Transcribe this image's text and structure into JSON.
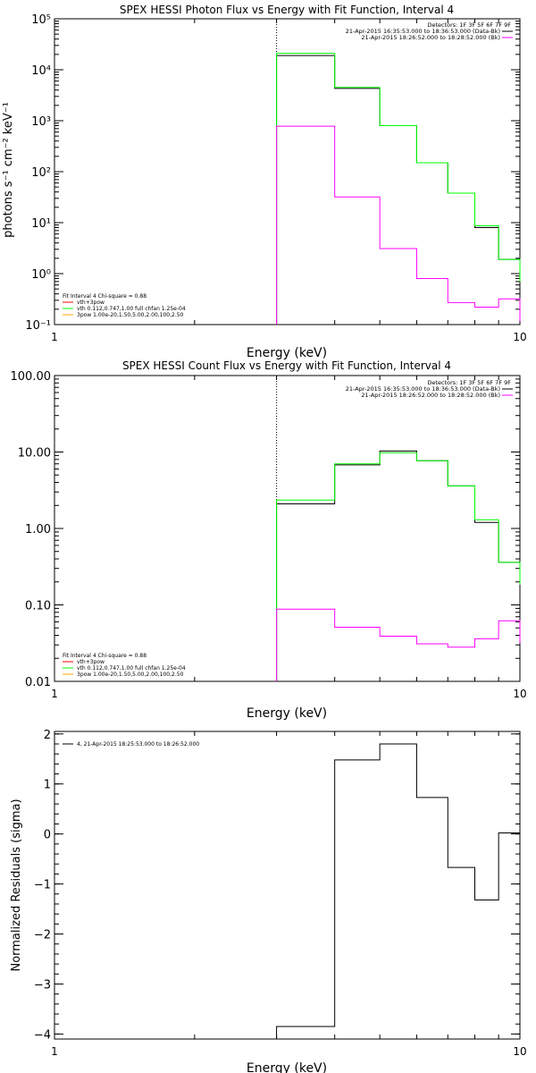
{
  "chart_data": [
    {
      "type": "line",
      "title": "SPEX HESSI Photon Flux vs Energy with Fit Function, Interval 4",
      "xlabel": "Energy (keV)",
      "ylabel": "photons s⁻¹ cm⁻² keV⁻¹",
      "x_scale": "log",
      "y_scale": "log",
      "xlim": [
        1,
        10
      ],
      "ylim": [
        0.1,
        100000
      ],
      "x_ticks": [
        {
          "v": 1,
          "label": "1"
        },
        {
          "v": 10,
          "label": "10"
        }
      ],
      "y_ticks": [
        {
          "v": 0.1,
          "label": "10⁻¹"
        },
        {
          "v": 1,
          "label": "10⁰"
        },
        {
          "v": 10,
          "label": "10¹"
        },
        {
          "v": 100,
          "label": "10²"
        },
        {
          "v": 1000,
          "label": "10³"
        },
        {
          "v": 10000,
          "label": "10⁴"
        },
        {
          "v": 100000,
          "label": "10⁵"
        }
      ],
      "vline": 3,
      "header": [
        "Detectors: 1F 3F 5F 6F 7F 9F",
        "21-Apr-2015 16:35:53.000 to 18:36:53.000 (Data-Bk)",
        "21-Apr-2015 18:26:52.000 to 18:28:52.000 (Bk)"
      ],
      "header_colors": [
        "#000000",
        "#ff00ff"
      ],
      "legend_title": "Fit Interval 4   Chi-square = 0.88",
      "legend": [
        {
          "label": "vth+3pow",
          "color": "#ff0000"
        },
        {
          "label": "vth 0.112,0.747,1.00  full chfan 1.25e-04",
          "color": "#00ff00"
        },
        {
          "label": "3pow 1.00e-20,1.50,5.00,2.00,100,2.50",
          "color": "#ffaa00"
        }
      ],
      "bin_edges": [
        3,
        4,
        5,
        6,
        7,
        8,
        9,
        10
      ],
      "series": [
        {
          "key": "data",
          "color": "#000000",
          "values": [
            19000,
            4300,
            800,
            150,
            38,
            8,
            1.9
          ]
        },
        {
          "key": "fit",
          "color": "#00ff00",
          "values": [
            21000,
            4500,
            800,
            150,
            38,
            8.7,
            1.9
          ]
        },
        {
          "key": "bk",
          "color": "#ff00ff",
          "values": [
            780,
            32,
            3.1,
            0.8,
            0.27,
            0.22,
            0.32
          ]
        }
      ]
    },
    {
      "type": "line",
      "title": "SPEX HESSI Count Flux vs Energy with Fit Function, Interval 4",
      "xlabel": "Energy (keV)",
      "ylabel": "",
      "x_scale": "log",
      "y_scale": "log",
      "xlim": [
        1,
        10
      ],
      "ylim": [
        0.01,
        100
      ],
      "x_ticks": [
        {
          "v": 1,
          "label": "1"
        },
        {
          "v": 10,
          "label": "10"
        }
      ],
      "y_ticks": [
        {
          "v": 0.01,
          "label": "0.01"
        },
        {
          "v": 0.1,
          "label": "0.10"
        },
        {
          "v": 1,
          "label": "1.00"
        },
        {
          "v": 10,
          "label": "10.00"
        },
        {
          "v": 100,
          "label": "100.00"
        }
      ],
      "vline": 3,
      "header": [
        "Detectors: 1F 3F 5F 6F 7F 9F",
        "21-Apr-2015 16:35:53.000 to 18:36:53.000 (Data-Bk)",
        "21-Apr-2015 18:26:52.000 to 18:28:52.000 (Bk)"
      ],
      "header_colors": [
        "#000000",
        "#ff00ff"
      ],
      "legend_title": "Fit Interval 4   Chi-square = 0.88",
      "legend": [
        {
          "label": "vth+3pow",
          "color": "#ff0000"
        },
        {
          "label": "vth 0.112,0.747,1.00  full chfan 1.25e-04",
          "color": "#00ff00"
        },
        {
          "label": "3pow 1.00e-20,1.50,5.00,2.00,100,2.50",
          "color": "#ffaa00"
        }
      ],
      "bin_edges": [
        3,
        4,
        5,
        6,
        7,
        8,
        9,
        10
      ],
      "series": [
        {
          "key": "data",
          "color": "#000000",
          "values": [
            2.1,
            6.8,
            10.3,
            7.7,
            3.6,
            1.2,
            0.36
          ]
        },
        {
          "key": "fit",
          "color": "#00ff00",
          "values": [
            2.35,
            7.0,
            9.8,
            7.7,
            3.6,
            1.3,
            0.36
          ]
        },
        {
          "key": "bk",
          "color": "#ff00ff",
          "values": [
            0.088,
            0.051,
            0.039,
            0.031,
            0.028,
            0.036,
            0.062
          ]
        }
      ]
    },
    {
      "type": "line",
      "title": "",
      "xlabel": "Energy (keV)",
      "ylabel": "Normalized Residuals (sigma)",
      "x_scale": "log",
      "y_scale": "linear",
      "xlim": [
        1,
        10
      ],
      "ylim": [
        -4.1,
        2.05
      ],
      "x_ticks": [
        {
          "v": 1,
          "label": "1"
        },
        {
          "v": 10,
          "label": "10"
        }
      ],
      "y_ticks": [
        {
          "v": -4,
          "label": "−4"
        },
        {
          "v": -3,
          "label": "−3"
        },
        {
          "v": -2,
          "label": "−2"
        },
        {
          "v": -1,
          "label": "−1"
        },
        {
          "v": 0,
          "label": "0"
        },
        {
          "v": 1,
          "label": "1"
        },
        {
          "v": 2,
          "label": "2"
        }
      ],
      "legend": [
        {
          "label": "4, 21-Apr-2015 18:25:53.000 to 18:26:52.000",
          "color": "#000000"
        }
      ],
      "bin_edges": [
        3,
        4,
        5,
        6,
        7,
        8,
        9,
        10
      ],
      "series": [
        {
          "key": "residuals",
          "color": "#000000",
          "values": [
            -3.85,
            1.48,
            1.8,
            0.73,
            -0.67,
            -1.32,
            0.02
          ]
        }
      ]
    }
  ]
}
